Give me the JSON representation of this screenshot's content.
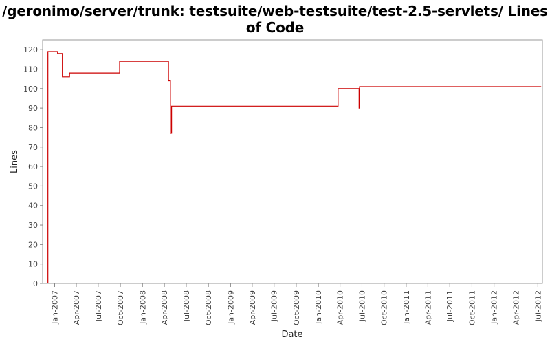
{
  "chart_data": {
    "type": "line",
    "step": true,
    "title": "/geronimo/server/trunk: testsuite/web-testsuite/test-2.5-servlets/ Lines of Code",
    "xlabel": "Date",
    "ylabel": "Lines",
    "ylim": [
      0,
      125
    ],
    "yticks": [
      0,
      10,
      20,
      30,
      40,
      50,
      60,
      70,
      80,
      90,
      100,
      110,
      120
    ],
    "xlim": [
      "2006-11-12",
      "2012-07-20"
    ],
    "xticks": [
      "2007-01-01",
      "2007-04-01",
      "2007-07-01",
      "2007-10-01",
      "2008-01-01",
      "2008-04-01",
      "2008-07-01",
      "2008-10-01",
      "2009-01-01",
      "2009-04-01",
      "2009-07-01",
      "2009-10-01",
      "2010-01-01",
      "2010-04-01",
      "2010-07-01",
      "2010-10-01",
      "2011-01-01",
      "2011-04-01",
      "2011-07-01",
      "2011-10-01",
      "2012-01-01",
      "2012-04-01",
      "2012-07-01"
    ],
    "xtick_labels": [
      "Jan-2007",
      "Apr-2007",
      "Jul-2007",
      "Oct-2007",
      "Jan-2008",
      "Apr-2008",
      "Jul-2008",
      "Oct-2008",
      "Jan-2009",
      "Apr-2009",
      "Jul-2009",
      "Oct-2009",
      "Jan-2010",
      "Apr-2010",
      "Jul-2010",
      "Oct-2010",
      "Jan-2011",
      "Apr-2011",
      "Jul-2011",
      "Oct-2011",
      "Jan-2012",
      "Apr-2012",
      "Jul-2012"
    ],
    "grid": false,
    "legend": "none",
    "series": [
      {
        "color": "#cc0000",
        "points": [
          {
            "x": "2006-12-04",
            "y": 0
          },
          {
            "x": "2006-12-04",
            "y": 119
          },
          {
            "x": "2007-01-13",
            "y": 118
          },
          {
            "x": "2007-02-02",
            "y": 106
          },
          {
            "x": "2007-03-04",
            "y": 108
          },
          {
            "x": "2007-09-28",
            "y": 114
          },
          {
            "x": "2008-04-18",
            "y": 104
          },
          {
            "x": "2008-04-26",
            "y": 77
          },
          {
            "x": "2008-05-01",
            "y": 91
          },
          {
            "x": "2010-03-24",
            "y": 100
          },
          {
            "x": "2010-06-19",
            "y": 90
          },
          {
            "x": "2010-06-21",
            "y": 101
          },
          {
            "x": "2012-07-15",
            "y": 101
          }
        ]
      }
    ]
  }
}
